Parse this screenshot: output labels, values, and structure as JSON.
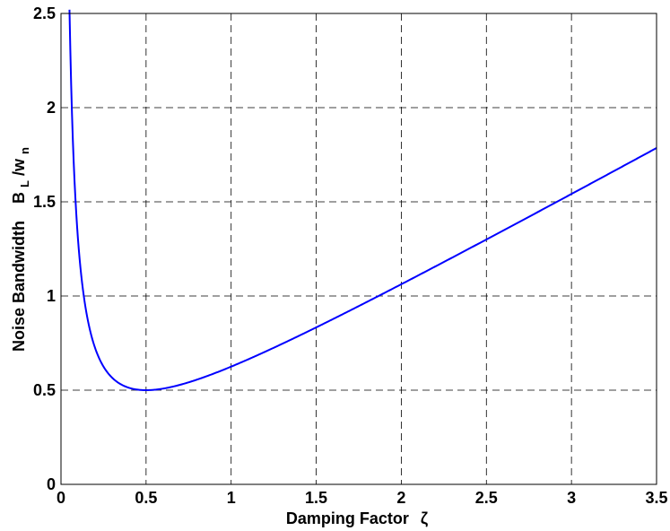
{
  "chart_data": {
    "type": "line",
    "xlabel": "Damping Factor",
    "xlabel_symbol": "ζ",
    "ylabel": "Noise Bandwidth",
    "ylabel_symbol_main": "B",
    "ylabel_symbol_sub": "L",
    "ylabel_symbol_slash": "/w",
    "ylabel_symbol_sub2": "n",
    "xlim": [
      0,
      3.5
    ],
    "ylim": [
      0,
      2.5
    ],
    "xticks": [
      "0",
      "0.5",
      "1",
      "1.5",
      "2",
      "2.5",
      "3",
      "3.5"
    ],
    "yticks": [
      "0",
      "0.5",
      "1",
      "1.5",
      "2",
      "2.5"
    ],
    "grid": true,
    "grid_style": "dashed",
    "series": [
      {
        "color": "#0000ff",
        "x": [
          0.05,
          0.06,
          0.08,
          0.1,
          0.12,
          0.15,
          0.2,
          0.25,
          0.3,
          0.35,
          0.4,
          0.45,
          0.5,
          0.6,
          0.7,
          0.8,
          1.0,
          1.25,
          1.5,
          1.75,
          2.0,
          2.25,
          2.5,
          2.75,
          3.0,
          3.25,
          3.5
        ],
        "y": [
          2.525,
          2.113,
          1.602,
          1.3,
          1.102,
          0.908,
          0.725,
          0.625,
          0.567,
          0.532,
          0.513,
          0.503,
          0.5,
          0.508,
          0.532,
          0.5625,
          0.625,
          0.7125,
          0.8333,
          0.9518,
          1.0625,
          1.1736,
          1.3,
          1.4659,
          1.5417,
          1.7019,
          1.7857
        ]
      }
    ]
  }
}
